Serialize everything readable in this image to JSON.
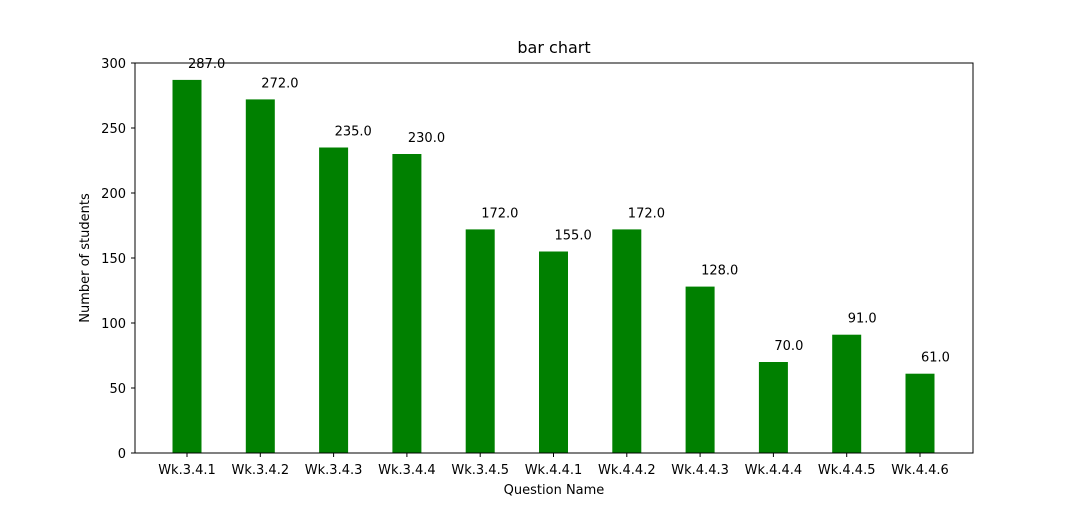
{
  "chart_data": {
    "type": "bar",
    "title": "bar chart",
    "xlabel": "Question Name",
    "ylabel": "Number of students",
    "categories": [
      "Wk.3.4.1",
      "Wk.3.4.2",
      "Wk.3.4.3",
      "Wk.3.4.4",
      "Wk.3.4.5",
      "Wk.4.4.1",
      "Wk.4.4.2",
      "Wk.4.4.3",
      "Wk.4.4.4",
      "Wk.4.4.5",
      "Wk.4.4.6"
    ],
    "values": [
      287,
      272,
      235,
      230,
      172,
      155,
      172,
      128,
      70,
      91,
      61
    ],
    "data_labels": [
      "287.0",
      "272.0",
      "235.0",
      "230.0",
      "172.0",
      "155.0",
      "172.0",
      "128.0",
      "70.0",
      "91.0",
      "61.0"
    ],
    "ylim": [
      0,
      300
    ],
    "yticks": [
      0,
      50,
      100,
      150,
      200,
      250,
      300
    ],
    "bar_color": "#008000",
    "grid": false
  }
}
